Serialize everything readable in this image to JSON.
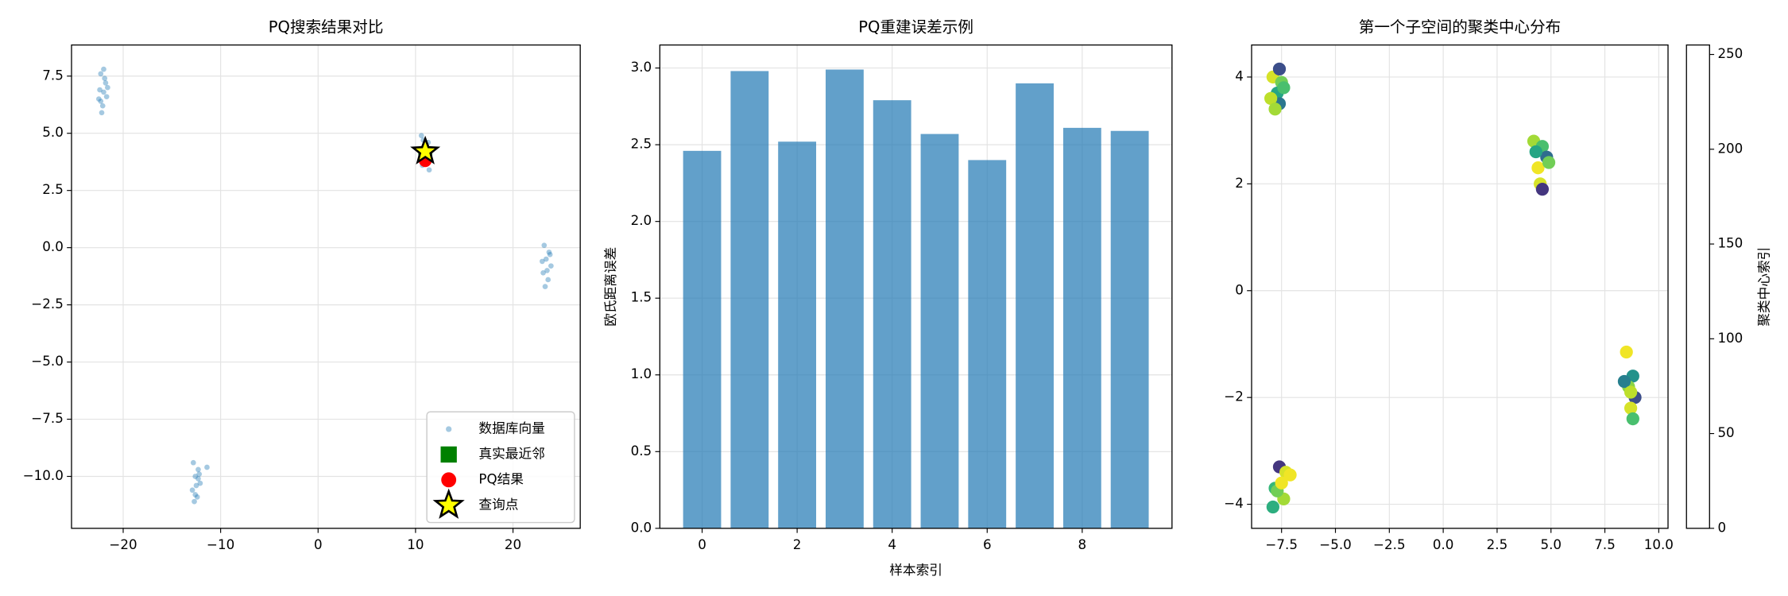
{
  "chart_data": [
    {
      "type": "scatter",
      "title": "PQ搜索结果对比",
      "xlim": [
        -25.3,
        26.9
      ],
      "ylim": [
        -12.27,
        8.86
      ],
      "xticks": [
        {
          "value": -20,
          "label": "−20"
        },
        {
          "value": -10,
          "label": "−10"
        },
        0,
        10,
        20
      ],
      "yticks": [
        {
          "value": 7.5,
          "label": "7.5"
        },
        {
          "value": 5,
          "label": "5.0"
        },
        {
          "value": 2.5,
          "label": "2.5"
        },
        {
          "value": 0,
          "label": "0.0"
        },
        {
          "value": -2.5,
          "label": "−2.5"
        },
        {
          "value": -5,
          "label": "−5.0"
        },
        {
          "value": -7.5,
          "label": "−7.5"
        },
        {
          "value": -10,
          "label": "−10.0"
        }
      ],
      "grid": true,
      "legend": "lower right",
      "series": [
        {
          "name": "数据库向量",
          "color": "#1f77b4",
          "marker": "o",
          "x": [
            -22.3,
            -21.8,
            -22.0,
            -22.5,
            -21.6,
            -22.1,
            -21.9,
            -22.4,
            -22.2,
            -21.7,
            -22.0,
            -22.3,
            -12.8,
            -12.3,
            -12.6,
            -12.1,
            -12.9,
            -12.4,
            -12.7,
            -12.2,
            -12.5,
            -11.4,
            -12.6,
            -12.3,
            10.6,
            11.3,
            10.9,
            11.1,
            10.7,
            11.4,
            11.0,
            10.8,
            23.2,
            23.7,
            23.4,
            23.9,
            23.1,
            23.6,
            23.3,
            23.8,
            23.5,
            23.0
          ],
          "y": [
            7.6,
            7.2,
            6.8,
            6.5,
            7.0,
            6.2,
            7.4,
            6.9,
            5.9,
            6.6,
            7.8,
            6.4,
            -9.4,
            -9.7,
            -10.0,
            -10.3,
            -10.6,
            -10.9,
            -11.1,
            -9.9,
            -10.4,
            -9.6,
            -10.8,
            -10.1,
            4.9,
            4.6,
            4.3,
            3.9,
            3.6,
            3.4,
            4.1,
            4.7,
            0.1,
            -0.2,
            -0.5,
            -0.8,
            -1.1,
            -1.4,
            -1.7,
            -0.3,
            -1.0,
            -0.6
          ]
        },
        {
          "name": "真实最近邻",
          "color": "#008000",
          "marker": "s",
          "x": [
            11.0
          ],
          "y": [
            4.1
          ]
        },
        {
          "name": "PQ结果",
          "color": "#ff0000",
          "marker": "o",
          "x": [
            11.0
          ],
          "y": [
            3.8
          ]
        },
        {
          "name": "查询点",
          "color": "#ffff00",
          "marker": "*",
          "x": [
            11.0
          ],
          "y": [
            4.2
          ]
        }
      ]
    },
    {
      "type": "bar",
      "title": "PQ重建误差示例",
      "xlabel": "样本索引",
      "ylabel": "欧氏距离误差",
      "x": [
        0,
        1,
        2,
        3,
        4,
        5,
        6,
        7,
        8,
        9
      ],
      "values": [
        2.46,
        2.98,
        2.52,
        2.99,
        2.79,
        2.57,
        2.4,
        2.9,
        2.61,
        2.59
      ],
      "color": "#1f77b4",
      "xlim": [
        -0.89,
        9.89
      ],
      "ylim": [
        0,
        3.15
      ],
      "xticks": [
        0,
        2,
        4,
        6,
        8
      ],
      "yticks": [
        {
          "value": 0,
          "label": "0.0"
        },
        {
          "value": 0.5,
          "label": "0.5"
        },
        {
          "value": 1,
          "label": "1.0"
        },
        {
          "value": 1.5,
          "label": "1.5"
        },
        {
          "value": 2,
          "label": "2.0"
        },
        {
          "value": 2.5,
          "label": "2.5"
        },
        {
          "value": 3,
          "label": "3.0"
        }
      ],
      "grid": true
    },
    {
      "type": "scatter",
      "title": "第一个子空间的聚类中心分布",
      "xlim": [
        -8.89,
        10.43
      ],
      "ylim": [
        -4.45,
        4.6
      ],
      "xticks": [
        {
          "value": -7.5,
          "label": "−7.5"
        },
        {
          "value": -5,
          "label": "−5.0"
        },
        {
          "value": -2.5,
          "label": "−2.5"
        },
        {
          "value": 0,
          "label": "0.0"
        },
        {
          "value": 2.5,
          "label": "2.5"
        },
        {
          "value": 5,
          "label": "5.0"
        },
        {
          "value": 7.5,
          "label": "7.5"
        },
        {
          "value": 10,
          "label": "10.0"
        }
      ],
      "yticks": [
        {
          "value": -4,
          "label": "−4"
        },
        {
          "value": -2,
          "label": "−2"
        },
        0,
        2,
        4
      ],
      "grid": true,
      "colormap": "viridis",
      "points": {
        "x": [
          -7.9,
          -7.5,
          -7.7,
          -7.6,
          -8.0,
          -7.4,
          -7.8,
          -7.6,
          4.2,
          4.6,
          4.8,
          4.4,
          4.5,
          4.9,
          4.3,
          4.6,
          8.5,
          8.8,
          8.6,
          8.9,
          8.7,
          8.4,
          8.8,
          8.7,
          -7.6,
          -7.3,
          -7.8,
          -7.4,
          -7.1,
          -7.7,
          -7.5,
          -7.9
        ],
        "y": [
          4.0,
          3.9,
          3.7,
          3.5,
          3.6,
          3.8,
          3.4,
          4.15,
          2.8,
          2.7,
          2.5,
          2.3,
          2.0,
          2.4,
          2.6,
          1.9,
          -1.15,
          -1.6,
          -1.8,
          -2.0,
          -2.2,
          -1.7,
          -2.4,
          -1.9,
          -3.3,
          -3.4,
          -3.7,
          -3.9,
          -3.45,
          -3.75,
          -3.6,
          -4.05
        ],
        "c": [
          240,
          200,
          150,
          100,
          230,
          180,
          220,
          60,
          220,
          180,
          90,
          250,
          240,
          200,
          150,
          40,
          250,
          130,
          210,
          60,
          240,
          110,
          180,
          230,
          40,
          240,
          170,
          220,
          250,
          200,
          250,
          160
        ]
      },
      "colorbar": {
        "label": "聚类中心索引",
        "lim": [
          0,
          255
        ],
        "ticks": [
          0,
          50,
          100,
          150,
          200,
          250
        ]
      }
    }
  ]
}
